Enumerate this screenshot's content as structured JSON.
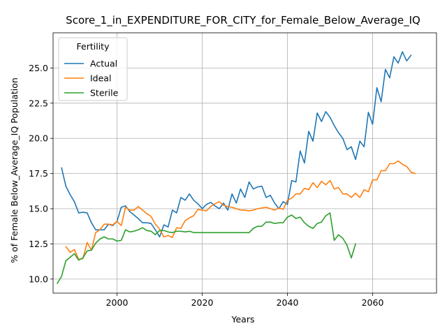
{
  "chart_data": {
    "type": "line",
    "title": "Score_1_in_EXPENDITURE_FOR_CITY_for_Female_Below_Average_IQ",
    "xlabel": "Years",
    "ylabel": "% of Female Below_Average_IQ Population",
    "xlim": [
      1985,
      2075
    ],
    "ylim": [
      9.0,
      27.5
    ],
    "xticks": [
      2000,
      2020,
      2040,
      2060
    ],
    "xtick_labels": [
      "2000",
      "2020",
      "2040",
      "2060"
    ],
    "yticks": [
      10.0,
      12.5,
      15.0,
      17.5,
      20.0,
      22.5,
      25.0
    ],
    "ytick_labels": [
      "10.0",
      "12.5",
      "15.0",
      "17.5",
      "20.0",
      "22.5",
      "25.0"
    ],
    "grid": true,
    "legend": {
      "title": "Fertility",
      "placement": "top-left"
    },
    "series": [
      {
        "name": "Actual",
        "color": "#1f77b4",
        "x": [
          1987,
          1988,
          1989,
          1990,
          1991,
          1992,
          1993,
          1994,
          1995,
          1996,
          1997,
          1998,
          1999,
          2000,
          2001,
          2002,
          2003,
          2004,
          2005,
          2006,
          2007,
          2008,
          2009,
          2010,
          2011,
          2012,
          2013,
          2014,
          2015,
          2016,
          2017,
          2018,
          2019,
          2020,
          2021,
          2022,
          2023,
          2024,
          2025,
          2026,
          2027,
          2028,
          2029,
          2030,
          2031,
          2032,
          2033,
          2034,
          2035,
          2036,
          2037,
          2038,
          2039,
          2040,
          2041,
          2042,
          2043,
          2044,
          2045,
          2046,
          2047,
          2048,
          2049,
          2050,
          2051,
          2052,
          2053,
          2054,
          2055,
          2056,
          2057,
          2058,
          2059,
          2060,
          2061,
          2062,
          2063,
          2064,
          2065,
          2066,
          2067,
          2068,
          2069,
          2070
        ],
        "values": [
          17.9,
          16.6,
          16.0,
          15.5,
          14.7,
          14.75,
          14.7,
          14.0,
          13.5,
          13.5,
          13.5,
          13.9,
          13.8,
          14.1,
          15.1,
          15.2,
          14.8,
          14.55,
          14.3,
          14.0,
          14.0,
          13.95,
          13.5,
          13.0,
          13.85,
          13.7,
          14.9,
          14.7,
          15.8,
          15.6,
          16.05,
          15.6,
          15.35,
          15.0,
          15.3,
          15.45,
          15.2,
          15.0,
          15.4,
          14.9,
          16.05,
          15.4,
          16.4,
          15.8,
          16.9,
          16.4,
          16.55,
          16.6,
          15.8,
          15.95,
          15.4,
          15.0,
          15.5,
          15.3,
          17.0,
          16.9,
          19.1,
          18.25,
          20.5,
          19.8,
          21.8,
          21.2,
          21.9,
          21.5,
          20.9,
          20.4,
          20.0,
          19.2,
          19.4,
          18.5,
          19.8,
          19.4,
          21.85,
          21.0,
          23.6,
          22.6,
          24.9,
          24.3,
          25.8,
          25.35,
          26.15,
          25.5,
          25.9,
          null
        ]
      },
      {
        "name": "Ideal",
        "color": "#ff7f0e",
        "x": [
          1988,
          1989,
          1990,
          1991,
          1992,
          1993,
          1994,
          1995,
          1996,
          1997,
          1998,
          1999,
          2000,
          2001,
          2002,
          2003,
          2004,
          2005,
          2006,
          2007,
          2008,
          2009,
          2010,
          2011,
          2012,
          2013,
          2014,
          2015,
          2016,
          2017,
          2018,
          2019,
          2020,
          2021,
          2022,
          2023,
          2024,
          2025,
          2026,
          2027,
          2028,
          2029,
          2030,
          2031,
          2032,
          2033,
          2034,
          2035,
          2036,
          2037,
          2038,
          2039,
          2040,
          2041,
          2042,
          2043,
          2044,
          2045,
          2046,
          2047,
          2048,
          2049,
          2050,
          2051,
          2052,
          2053,
          2054,
          2055,
          2056,
          2057,
          2058,
          2059,
          2060,
          2061,
          2062,
          2063,
          2064,
          2065,
          2066,
          2067,
          2068,
          2069,
          2070
        ],
        "values": [
          12.3,
          11.9,
          12.1,
          11.4,
          11.45,
          12.6,
          12.05,
          13.3,
          13.5,
          13.9,
          13.9,
          13.85,
          14.1,
          13.8,
          15.1,
          14.9,
          14.9,
          15.15,
          14.9,
          14.65,
          14.45,
          13.9,
          13.55,
          13.0,
          13.1,
          12.95,
          13.65,
          13.6,
          14.15,
          14.35,
          14.5,
          14.95,
          14.9,
          14.85,
          15.15,
          15.35,
          15.5,
          15.25,
          15.15,
          15.1,
          15.0,
          14.9,
          14.9,
          14.85,
          14.9,
          15.0,
          15.05,
          15.1,
          15.0,
          14.9,
          15.05,
          14.95,
          15.6,
          15.75,
          16.05,
          16.05,
          16.45,
          16.35,
          16.85,
          16.5,
          16.95,
          16.7,
          17.0,
          16.4,
          16.5,
          16.05,
          16.05,
          15.8,
          16.1,
          15.8,
          16.35,
          16.2,
          17.05,
          17.05,
          17.7,
          17.7,
          18.2,
          18.2,
          18.4,
          18.15,
          18.0,
          17.6,
          17.5
        ]
      },
      {
        "name": "Sterile",
        "color": "#2ca02c",
        "x": [
          1986,
          1987,
          1988,
          1989,
          1990,
          1991,
          1992,
          1993,
          1994,
          1995,
          1996,
          1997,
          1998,
          1999,
          2000,
          2001,
          2002,
          2003,
          2004,
          2005,
          2006,
          2007,
          2008,
          2009,
          2010,
          2011,
          2012,
          2013,
          2014,
          2015,
          2016,
          2017,
          2018,
          2019,
          2020,
          2021,
          2022,
          2023,
          2024,
          2025,
          2026,
          2027,
          2028,
          2029,
          2030,
          2031,
          2032,
          2033,
          2034,
          2035,
          2036,
          2037,
          2038,
          2039,
          2040,
          2041,
          2042,
          2043,
          2044,
          2045,
          2046,
          2047,
          2048,
          2049,
          2050,
          2051,
          2052,
          2053,
          2054,
          2055,
          2056
        ],
        "values": [
          9.7,
          10.2,
          11.3,
          11.55,
          11.8,
          11.35,
          11.5,
          12.0,
          12.05,
          12.55,
          12.85,
          13.0,
          12.85,
          12.85,
          12.7,
          12.75,
          13.5,
          13.35,
          13.4,
          13.5,
          13.65,
          13.45,
          13.4,
          13.15,
          13.45,
          13.45,
          13.35,
          13.3,
          13.4,
          13.4,
          13.35,
          13.4,
          13.3,
          13.3,
          13.3,
          13.3,
          13.3,
          13.3,
          13.3,
          13.3,
          13.3,
          13.3,
          13.3,
          13.3,
          13.3,
          13.3,
          13.6,
          13.75,
          13.75,
          14.05,
          14.05,
          13.95,
          14.0,
          14.0,
          14.4,
          14.55,
          14.3,
          14.4,
          14.0,
          13.75,
          13.6,
          13.95,
          14.05,
          14.5,
          14.7,
          12.75,
          13.15,
          12.9,
          12.4,
          11.5,
          12.5
        ]
      }
    ]
  }
}
